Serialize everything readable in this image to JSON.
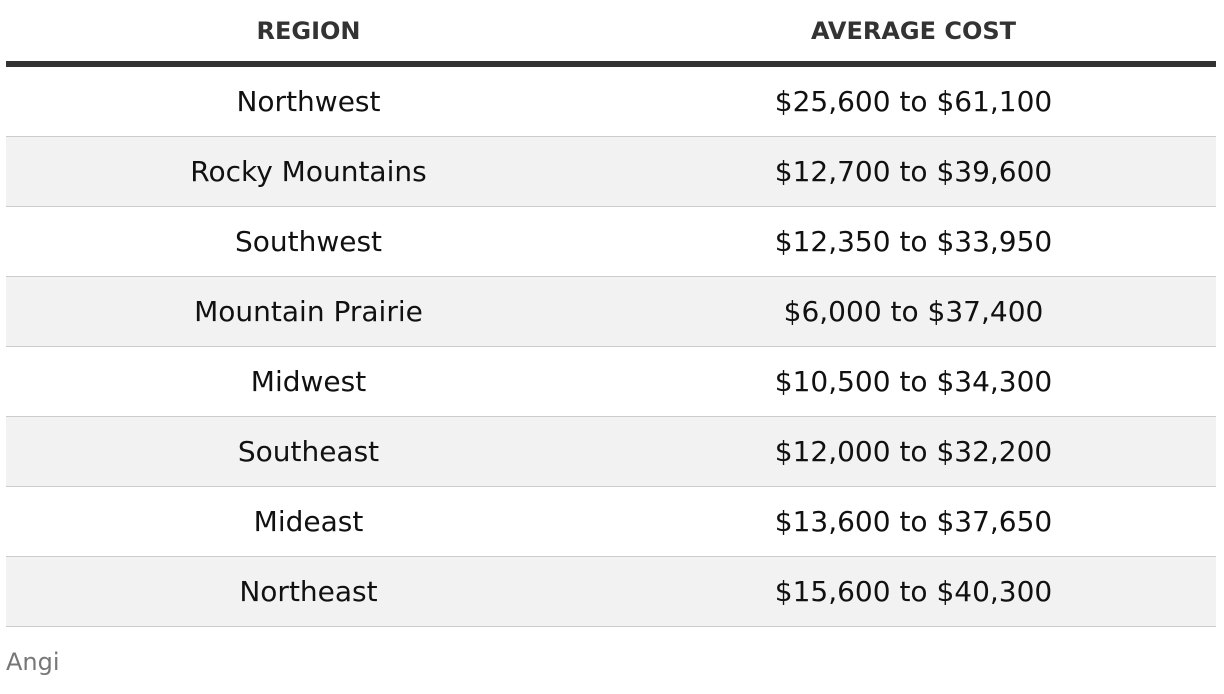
{
  "table": {
    "header": [
      "REGION",
      "AVERAGE COST"
    ],
    "rows": [
      [
        "Northwest",
        "$25,600 to $61,100"
      ],
      [
        "Rocky Mountains",
        "$12,700 to $39,600"
      ],
      [
        "Southwest",
        "$12,350 to $33,950"
      ],
      [
        "Mountain Prairie",
        "$6,000 to $37,400"
      ],
      [
        "Midwest",
        "$10,500 to $34,300"
      ],
      [
        "Southeast",
        "$12,000 to $32,200"
      ],
      [
        "Mideast",
        "$13,600 to $37,650"
      ],
      [
        "Northeast",
        "$15,600 to $40,300"
      ]
    ]
  },
  "source": "Angi"
}
